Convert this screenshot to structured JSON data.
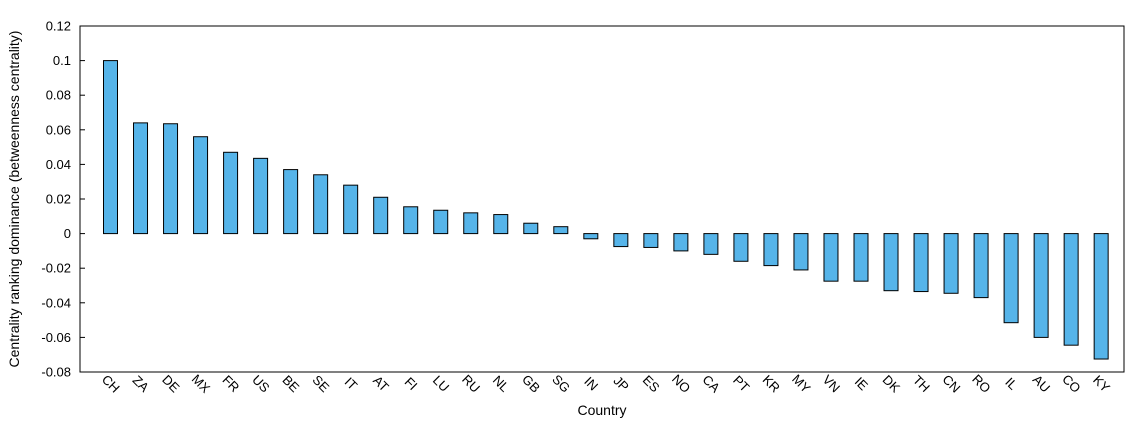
{
  "chart_data": {
    "type": "bar",
    "title": "",
    "xlabel": "Country",
    "ylabel": "Centrality ranking dominance (betweenness centrality)",
    "ylim": [
      -0.08,
      0.12
    ],
    "yticks": [
      0.12,
      0.1,
      0.08,
      0.06,
      0.04,
      0.02,
      0,
      -0.02,
      -0.04,
      -0.06,
      -0.08
    ],
    "ytick_labels": [
      "0.12",
      "0.1",
      "0.08",
      "0.06",
      "0.04",
      "0.02",
      "0",
      "-0.02",
      "-0.04",
      "-0.06",
      "-0.08"
    ],
    "grid": false,
    "bar_color": "#56b4e9",
    "categories": [
      "CH",
      "ZA",
      "DE",
      "MX",
      "FR",
      "US",
      "BE",
      "SE",
      "IT",
      "AT",
      "FI",
      "LU",
      "RU",
      "NL",
      "GB",
      "SG",
      "IN",
      "JP",
      "ES",
      "NO",
      "CA",
      "PT",
      "KR",
      "MY",
      "VN",
      "IE",
      "DK",
      "TH",
      "CN",
      "RO",
      "IL",
      "AU",
      "CO",
      "KY"
    ],
    "values": [
      0.1,
      0.064,
      0.0635,
      0.056,
      0.047,
      0.0435,
      0.037,
      0.034,
      0.028,
      0.021,
      0.0155,
      0.0135,
      0.012,
      0.011,
      0.006,
      0.004,
      -0.003,
      -0.0075,
      -0.008,
      -0.01,
      -0.012,
      -0.016,
      -0.0185,
      -0.021,
      -0.0275,
      -0.0275,
      -0.033,
      -0.0335,
      -0.0345,
      -0.037,
      -0.0515,
      -0.06,
      -0.0645,
      -0.0725
    ]
  }
}
